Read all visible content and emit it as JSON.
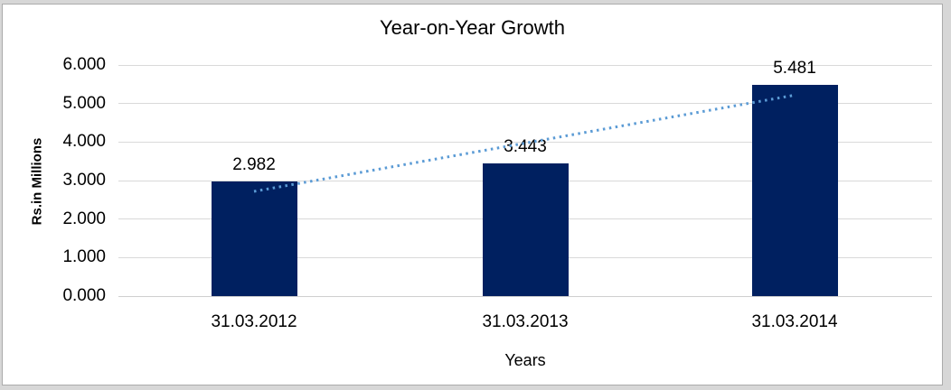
{
  "frame": {
    "page_background": "#d7d7d7",
    "chart_background": "#ffffff",
    "chart_border_color": "#ababab"
  },
  "chart_data": {
    "type": "bar",
    "title": "Year-on-Year Growth",
    "categories": [
      "31.03.2012",
      "31.03.2013",
      "31.03.2014"
    ],
    "values": [
      2.982,
      3.443,
      5.481
    ],
    "data_labels": [
      "2.982",
      "3.443",
      "5.481"
    ],
    "xlabel": "Years",
    "ylabel": "Rs.in Millions",
    "ylim": [
      0,
      6
    ],
    "ytick_interval": 1,
    "ytick_labels": [
      "0.000",
      "1.000",
      "2.000",
      "3.000",
      "4.000",
      "5.000",
      "6.000"
    ],
    "grid": true,
    "legend": "none",
    "bar_color": "#002060",
    "gridline_color": "#d9d9d9",
    "text_color": "#000000",
    "trendline": {
      "type": "linear",
      "style": "dotted",
      "color": "#5b9bd5"
    }
  }
}
